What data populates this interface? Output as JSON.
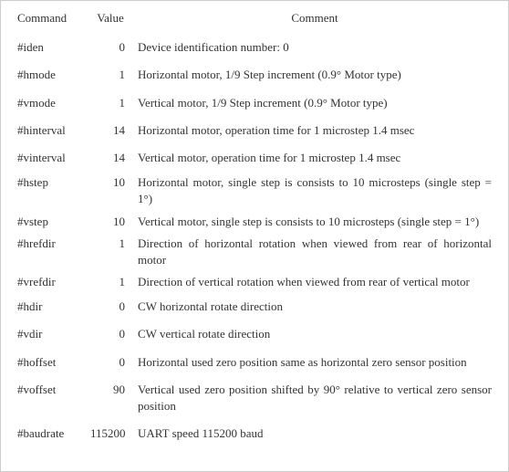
{
  "headers": {
    "command": "Command",
    "value": "Value",
    "comment": "Comment"
  },
  "rows": [
    {
      "command": "#iden",
      "value": "0",
      "comment": "Device identification number: 0"
    },
    {
      "command": "#hmode",
      "value": "1",
      "comment": "Horizontal motor, 1/9 Step increment (0.9° Motor type)"
    },
    {
      "command": "#vmode",
      "value": "1",
      "comment": "Vertical motor, 1/9 Step increment (0.9° Motor type)"
    },
    {
      "command": "#hinterval",
      "value": "14",
      "comment": "Horizontal motor, operation time for 1 microstep 1.4 msec"
    },
    {
      "command": "#vinterval",
      "value": "14",
      "comment": "Vertical motor, operation time for 1 microstep 1.4 msec"
    },
    {
      "command": "#hstep",
      "value": "10",
      "comment": "Horizontal motor, single step is consists to 10 microsteps (single step = 1°)"
    },
    {
      "command": "#vstep",
      "value": "10",
      "comment": "Vertical motor, single step is consists to 10 microsteps (single step = 1°)"
    },
    {
      "command": "#hrefdir",
      "value": "1",
      "comment": "Direction of horizontal rotation when viewed from rear of horizontal motor"
    },
    {
      "command": "#vrefdir",
      "value": "1",
      "comment": "Direction of vertical rotation when viewed from rear of vertical motor"
    },
    {
      "command": "#hdir",
      "value": "0",
      "comment": "CW horizontal rotate direction"
    },
    {
      "command": "#vdir",
      "value": "0",
      "comment": "CW vertical rotate direction"
    },
    {
      "command": "#hoffset",
      "value": "0",
      "comment": "Horizontal used zero position same as horizontal zero sensor position"
    },
    {
      "command": "#voffset",
      "value": "90",
      "comment": "Vertical used zero position shifted by 90° relative to vertical zero sensor position"
    },
    {
      "command": "#baudrate",
      "value": "115200",
      "comment": "UART speed 115200 baud"
    }
  ]
}
